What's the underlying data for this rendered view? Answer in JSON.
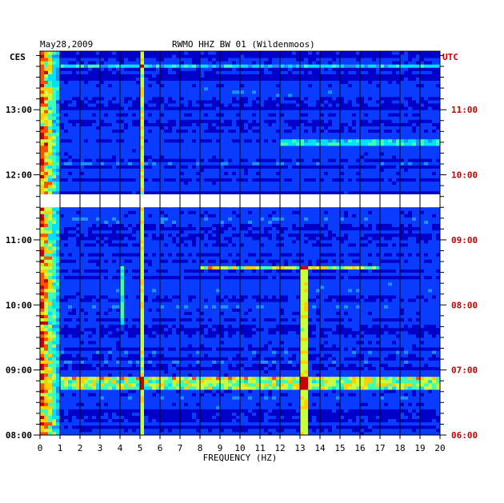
{
  "header": {
    "date": "May28,2009",
    "station": "RWMO HHZ BW 01 (Wildenmoos)"
  },
  "chart_data": {
    "type": "heatmap",
    "title": "RWMO HHZ BW 01 (Wildenmoos)",
    "date": "May28,2009",
    "xlabel": "FREQUENCY (HZ)",
    "xlim": [
      0,
      20
    ],
    "x_ticks": [
      0,
      1,
      2,
      3,
      4,
      5,
      6,
      7,
      8,
      9,
      10,
      11,
      12,
      13,
      14,
      15,
      16,
      17,
      18,
      19,
      20
    ],
    "left_axis_label": "CES",
    "right_axis_label": "UTC",
    "ylim_hours": [
      8.0,
      13.9
    ],
    "left_ticks": [
      {
        "hour": 13,
        "label": "13:00"
      },
      {
        "hour": 12,
        "label": "12:00"
      },
      {
        "hour": 11,
        "label": "11:00"
      },
      {
        "hour": 10,
        "label": "10:00"
      },
      {
        "hour": 9,
        "label": "09:00"
      },
      {
        "hour": 8,
        "label": "08:00"
      }
    ],
    "right_ticks": [
      {
        "hour": 13,
        "label": "11:00"
      },
      {
        "hour": 12,
        "label": "10:00"
      },
      {
        "hour": 11,
        "label": "09:00"
      },
      {
        "hour": 10,
        "label": "08:00"
      },
      {
        "hour": 9,
        "label": "07:00"
      },
      {
        "hour": 8,
        "label": "06:00"
      }
    ],
    "data_gap_hours": [
      11.5,
      11.7
    ],
    "features": [
      {
        "kind": "low-frequency band",
        "freq_range_hz": [
          0,
          1.0
        ],
        "time_range_hours": [
          8.0,
          13.9
        ],
        "intensity": "high"
      },
      {
        "kind": "broadband event",
        "freq_range_hz": [
          1.0,
          20.0
        ],
        "time_range_hours": [
          8.7,
          8.9
        ],
        "intensity": "medium"
      },
      {
        "kind": "narrow line",
        "freq_hz": 5.1,
        "time_range_hours": [
          8.0,
          13.9
        ],
        "intensity": "medium"
      },
      {
        "kind": "narrow line",
        "freq_hz": 13.2,
        "time_range_hours": [
          8.0,
          10.6
        ],
        "intensity": "medium"
      },
      {
        "kind": "narrow line",
        "freq_hz": 4.1,
        "time_range_hours": [
          9.7,
          10.6
        ],
        "intensity": "low"
      },
      {
        "kind": "horizontal streak",
        "freq_range_hz": [
          8.0,
          17.0
        ],
        "time_range_hours": [
          10.55,
          10.6
        ],
        "intensity": "medium"
      },
      {
        "kind": "horizontal streak",
        "freq_range_hz": [
          12.0,
          20.0
        ],
        "time_range_hours": [
          12.45,
          12.55
        ],
        "intensity": "low"
      },
      {
        "kind": "horizontal streak",
        "freq_range_hz": [
          1.0,
          20.0
        ],
        "time_range_hours": [
          13.65,
          13.7
        ],
        "intensity": "low"
      }
    ],
    "colormap": [
      "#00007a",
      "#0000c8",
      "#0a3cff",
      "#1e90ff",
      "#00e0ff",
      "#40ffb0",
      "#c8ff40",
      "#ffd000",
      "#ff5000",
      "#c80000"
    ],
    "grid": true
  }
}
